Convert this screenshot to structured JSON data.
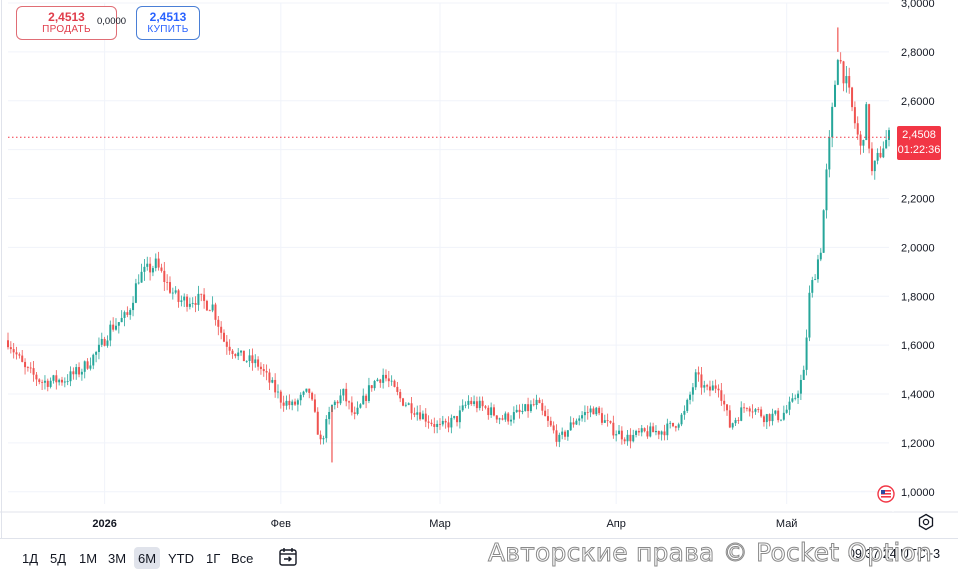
{
  "trade": {
    "sell_price": "2,4513",
    "sell_label": "ПРОДАТЬ",
    "spread": "0,0000",
    "buy_price": "2,4513",
    "buy_label": "КУПИТЬ"
  },
  "current": {
    "price": "2,4508",
    "price_value": 2.4508,
    "countdown": "01:22:36"
  },
  "range_buttons": [
    "1Д",
    "5Д",
    "1М",
    "3М",
    "6М",
    "YTD",
    "1Г",
    "Все"
  ],
  "active_range": "6М",
  "clock": "09:37:24 UTC+3",
  "watermark": "Авторские права © Pocket Option",
  "icons": {
    "compare": "compare-icon",
    "settings": "settings-icon",
    "flag": "flag-icon"
  },
  "colors": {
    "up": "#26a69a",
    "down": "#ef5350",
    "price_line": "#f23645",
    "grid": "#f0f3fa"
  },
  "chart_data": {
    "type": "candlestick",
    "title": "",
    "xlabel": "",
    "ylabel": "",
    "ylim": [
      0.95,
      3.0
    ],
    "y_ticks": [
      "1,0000",
      "1,2000",
      "1,4000",
      "1,6000",
      "1,8000",
      "2,0000",
      "2,2000",
      "2,4000",
      "2,6000",
      "2,8000",
      "3,0000"
    ],
    "y_tick_values": [
      1.0,
      1.2,
      1.4,
      1.6,
      1.8,
      2.0,
      2.2,
      2.4,
      2.6,
      2.8,
      3.0
    ],
    "x_start": "2025-12-15",
    "x_end": "2026-05-19",
    "x_ticks": [
      {
        "label": "2026",
        "date": "2026-01-01",
        "bold": true
      },
      {
        "label": "Фев",
        "date": "2026-02-01"
      },
      {
        "label": "Мар",
        "date": "2026-03-01"
      },
      {
        "label": "Апр",
        "date": "2026-04-01"
      },
      {
        "label": "Май",
        "date": "2026-05-01"
      }
    ],
    "price_path": [
      [
        "2025-12-15",
        1.62
      ],
      [
        "2025-12-18",
        1.5
      ],
      [
        "2025-12-21",
        1.45
      ],
      [
        "2025-12-25",
        1.46
      ],
      [
        "2025-12-28",
        1.5
      ],
      [
        "2025-12-31",
        1.58
      ],
      [
        "2026-01-02",
        1.67
      ],
      [
        "2026-01-05",
        1.72
      ],
      [
        "2026-01-07",
        1.88
      ],
      [
        "2026-01-10",
        1.93
      ],
      [
        "2026-01-12",
        1.85
      ],
      [
        "2026-01-14",
        1.78
      ],
      [
        "2026-01-17",
        1.79
      ],
      [
        "2026-01-20",
        1.76
      ],
      [
        "2026-01-22",
        1.62
      ],
      [
        "2026-01-25",
        1.55
      ],
      [
        "2026-01-28",
        1.52
      ],
      [
        "2026-01-30",
        1.45
      ],
      [
        "2026-02-01",
        1.38
      ],
      [
        "2026-02-03",
        1.35
      ],
      [
        "2026-02-06",
        1.41
      ],
      [
        "2026-02-08",
        1.2
      ],
      [
        "2026-02-10",
        1.35
      ],
      [
        "2026-02-12",
        1.4
      ],
      [
        "2026-02-14",
        1.3
      ],
      [
        "2026-02-17",
        1.44
      ],
      [
        "2026-02-19",
        1.48
      ],
      [
        "2026-02-22",
        1.38
      ],
      [
        "2026-02-25",
        1.33
      ],
      [
        "2026-03-01",
        1.26
      ],
      [
        "2026-03-04",
        1.3
      ],
      [
        "2026-03-06",
        1.37
      ],
      [
        "2026-03-09",
        1.34
      ],
      [
        "2026-03-12",
        1.3
      ],
      [
        "2026-03-15",
        1.32
      ],
      [
        "2026-03-18",
        1.36
      ],
      [
        "2026-03-20",
        1.28
      ],
      [
        "2026-03-22",
        1.21
      ],
      [
        "2026-03-25",
        1.3
      ],
      [
        "2026-03-28",
        1.34
      ],
      [
        "2026-03-31",
        1.26
      ],
      [
        "2026-04-03",
        1.22
      ],
      [
        "2026-04-06",
        1.24
      ],
      [
        "2026-04-09",
        1.25
      ],
      [
        "2026-04-11",
        1.27
      ],
      [
        "2026-04-13",
        1.32
      ],
      [
        "2026-04-15",
        1.47
      ],
      [
        "2026-04-17",
        1.41
      ],
      [
        "2026-04-19",
        1.44
      ],
      [
        "2026-04-21",
        1.27
      ],
      [
        "2026-04-24",
        1.36
      ],
      [
        "2026-04-27",
        1.31
      ],
      [
        "2026-04-30",
        1.31
      ],
      [
        "2026-05-02",
        1.36
      ],
      [
        "2026-05-04",
        1.48
      ],
      [
        "2026-05-05",
        1.8
      ],
      [
        "2026-05-07",
        2.0
      ],
      [
        "2026-05-08",
        2.3
      ],
      [
        "2026-05-09",
        2.55
      ],
      [
        "2026-05-10",
        2.8
      ],
      [
        "2026-05-12",
        2.62
      ],
      [
        "2026-05-14",
        2.4
      ],
      [
        "2026-05-15",
        2.55
      ],
      [
        "2026-05-16",
        2.3
      ],
      [
        "2026-05-18",
        2.42
      ],
      [
        "2026-05-19",
        2.45
      ]
    ],
    "spikes": [
      {
        "date": "2026-02-10",
        "low": 1.12
      },
      {
        "date": "2026-05-10",
        "high": 2.9
      }
    ],
    "current_price": 2.4508
  }
}
